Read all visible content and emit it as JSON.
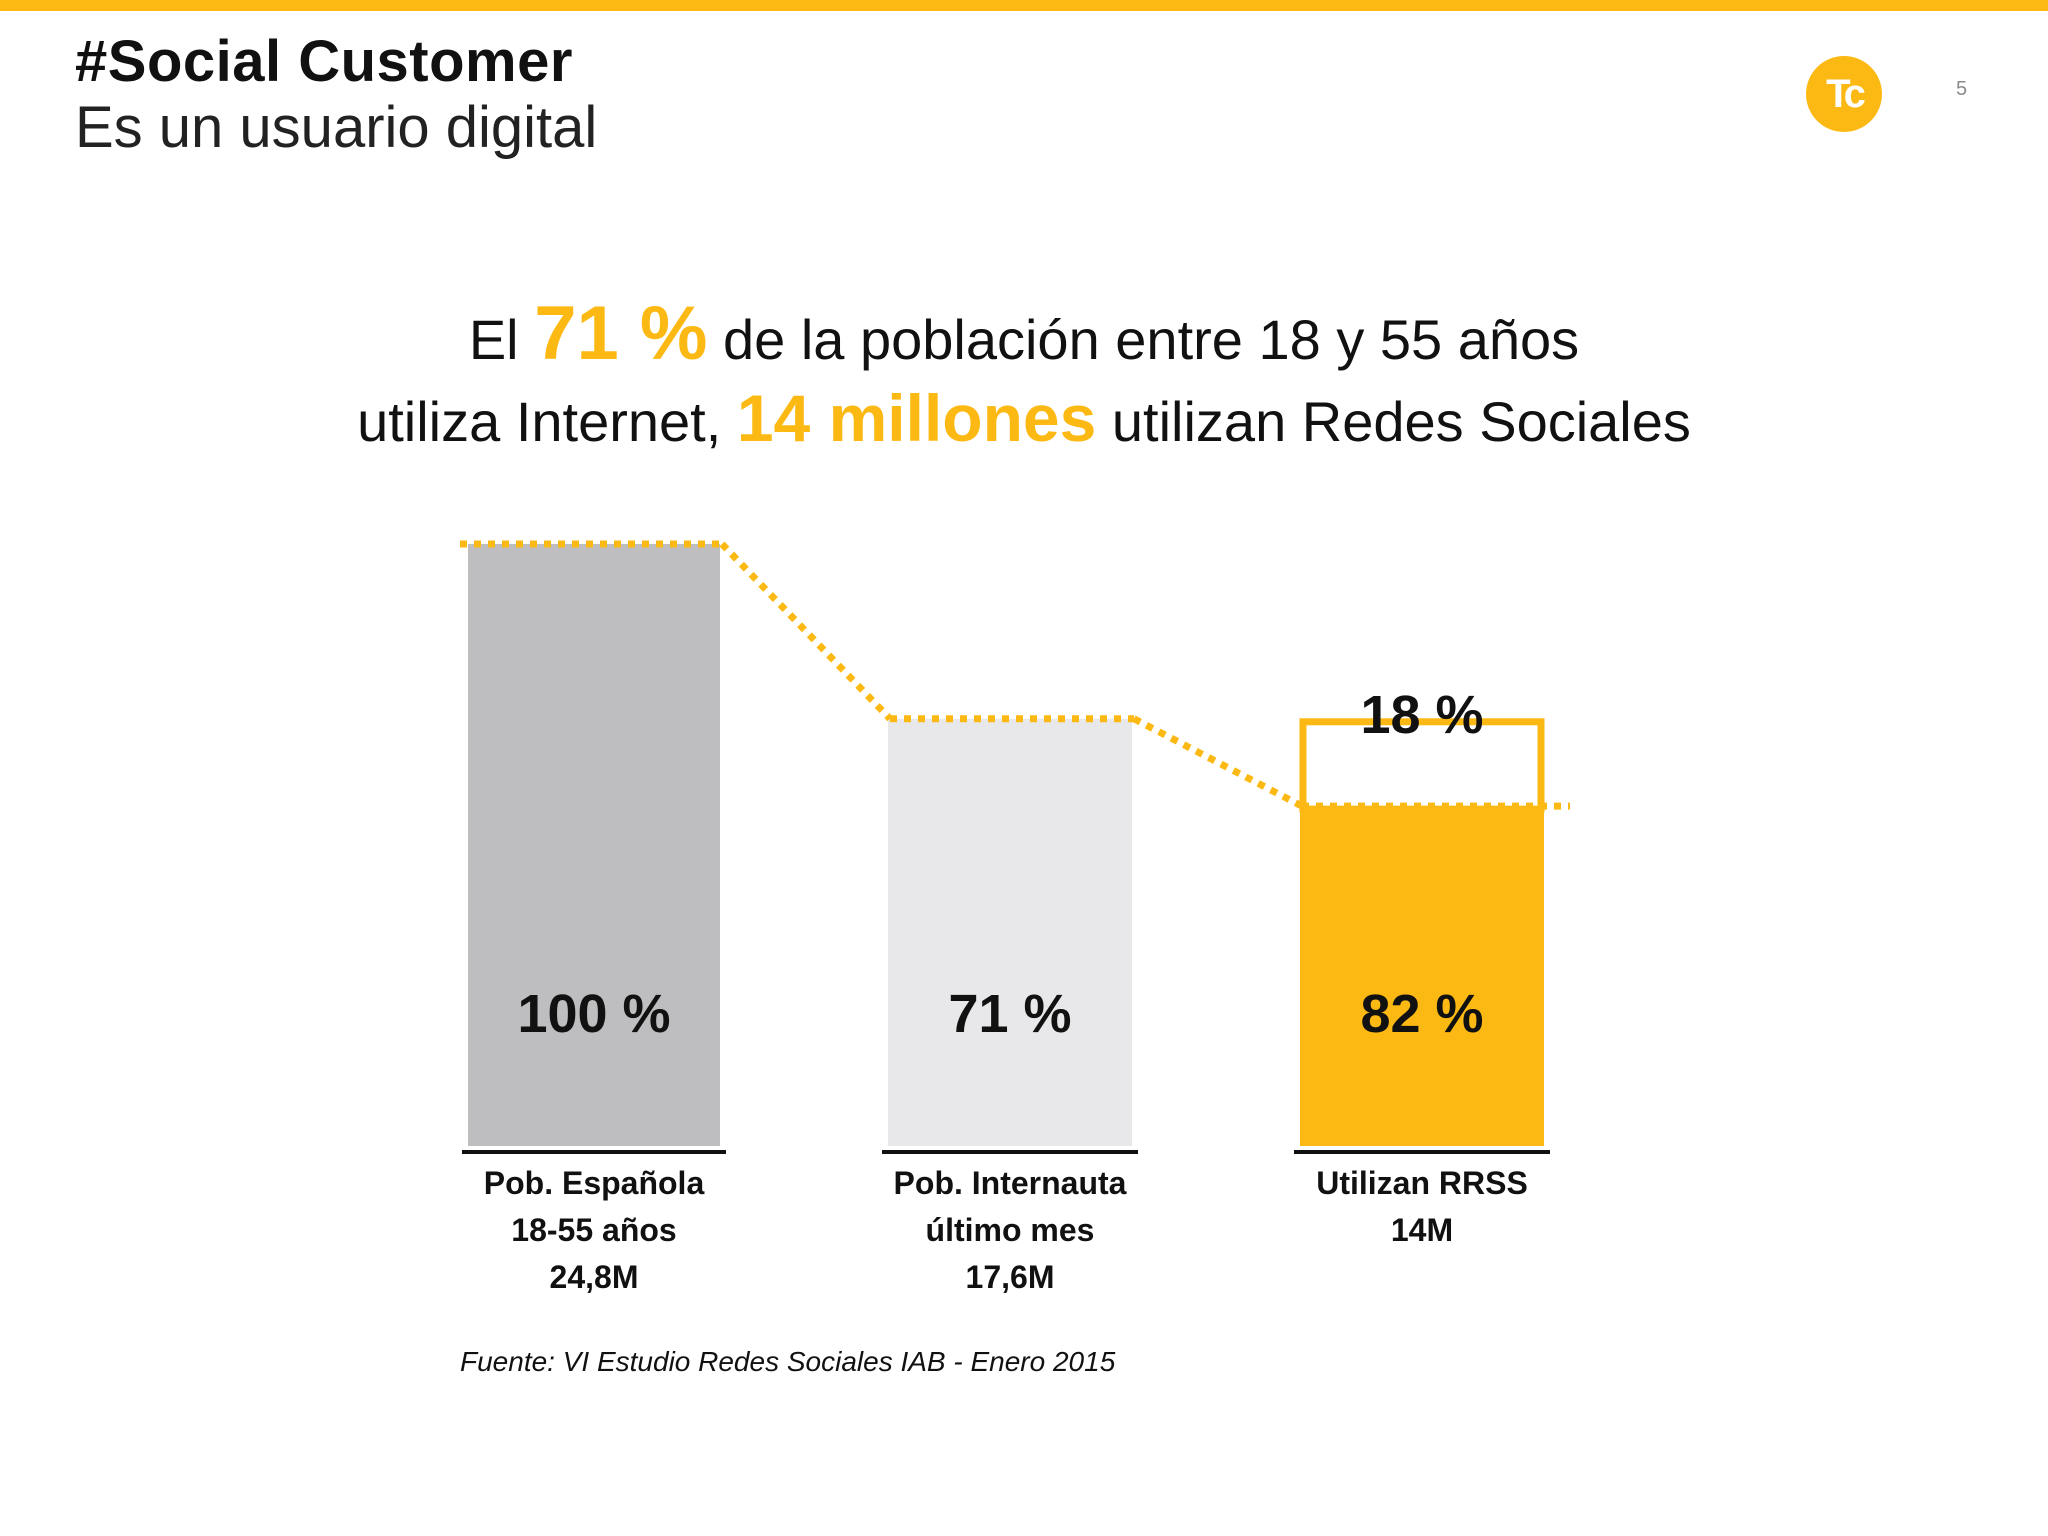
{
  "header": {
    "title": "#Social Customer",
    "subtitle": "Es un usuario digital",
    "logo_text": "Tc",
    "page_number": "5"
  },
  "headline": {
    "line1_pre": "El ",
    "line1_accent": "71 %",
    "line1_post": " de la población entre 18 y 55 años",
    "line2_pre": "utiliza Internet, ",
    "line2_accent": "14 millones",
    "line2_post": " utilizan Redes Sociales"
  },
  "colors": {
    "accent": "#FDB913",
    "bar_dark_gray": "#BEBDBF",
    "bar_light_gray": "#E8E7E9",
    "text": "#111111"
  },
  "chart_data": {
    "type": "bar",
    "categories": [
      [
        "Pob. Española",
        "18-55 años",
        "24,8M"
      ],
      [
        "Pob. Internauta",
        "último mes",
        "17,6M"
      ],
      [
        "Utilizan RRSS",
        "14M"
      ]
    ],
    "values_millions": [
      24.8,
      17.6,
      14
    ],
    "bar_labels": [
      "100 %",
      "71 %",
      "82 %"
    ],
    "remainder_label": "18 %",
    "bar_colors": [
      "#BEBDBF",
      "#E8E7E9",
      "#FDB913"
    ],
    "connector": "dotted",
    "ylim": [
      0,
      24.8
    ]
  },
  "source": "Fuente: VI Estudio Redes Sociales IAB - Enero 2015"
}
